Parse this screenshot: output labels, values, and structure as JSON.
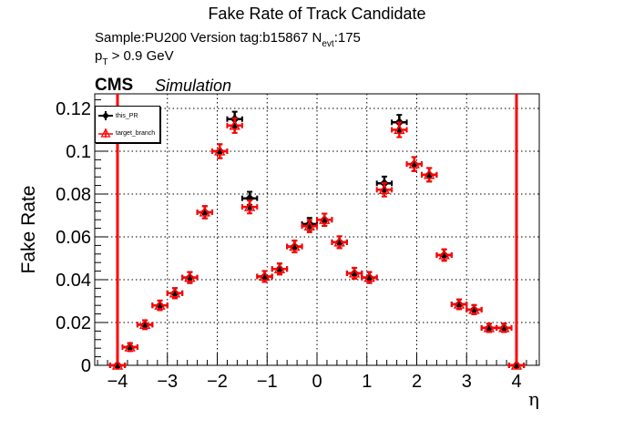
{
  "header": {
    "title": "Fake Rate of Track Candidate",
    "sample_prefix": "Sample:PU200   Version tag:b15867  N",
    "sample_sub": "evt",
    "sample_suffix": ":175",
    "pt_prefix": "p",
    "pt_sub": "T",
    "pt_suffix": " > 0.9 GeV",
    "cms": "CMS",
    "simulation": "Simulation"
  },
  "colors": {
    "this_pr": "#000000",
    "target_branch": "#ff0000",
    "cut_lines": "#ff0000"
  },
  "chart_data": {
    "type": "scatter",
    "title": "Fake Rate of Track Candidate",
    "xlabel": "η",
    "ylabel": "Fake Rate",
    "xlim": [
      -4.5,
      4.5
    ],
    "ylim": [
      0,
      0.1268
    ],
    "xticks": [
      "−4",
      "−3",
      "−2",
      "−1",
      "0",
      "1",
      "2",
      "3",
      "4"
    ],
    "yticks": [
      "0",
      "0.02",
      "0.04",
      "0.06",
      "0.08",
      "0.1",
      "0.12"
    ],
    "grid": true,
    "legend_position": "top-left",
    "vertical_lines": [
      -4.0,
      4.0
    ],
    "bin_half_width": 0.15,
    "x": [
      -4.0,
      -3.75,
      -3.45,
      -3.15,
      -2.85,
      -2.55,
      -2.25,
      -1.95,
      -1.65,
      -1.35,
      -1.05,
      -0.75,
      -0.45,
      -0.15,
      0.15,
      0.45,
      0.75,
      1.05,
      1.35,
      1.65,
      1.95,
      2.25,
      2.55,
      2.85,
      3.15,
      3.45,
      3.75,
      4.0
    ],
    "series": [
      {
        "name": "this_PR",
        "marker": "filled-diamond",
        "color": "#000000",
        "values": [
          0.0,
          0.0085,
          0.019,
          0.028,
          0.0337,
          0.041,
          0.0715,
          0.1,
          0.115,
          0.078,
          0.0415,
          0.045,
          0.0555,
          0.066,
          0.068,
          0.0575,
          0.043,
          0.041,
          0.085,
          0.1135,
          0.094,
          0.089,
          0.0515,
          0.0285,
          0.026,
          0.0175,
          0.0175,
          0.0
        ],
        "errors": [
          0.0,
          0.001,
          0.0012,
          0.0014,
          0.0015,
          0.0017,
          0.002,
          0.0024,
          0.0026,
          0.0022,
          0.0017,
          0.0017,
          0.0019,
          0.002,
          0.002,
          0.0019,
          0.0017,
          0.0017,
          0.0023,
          0.0026,
          0.0024,
          0.0023,
          0.0018,
          0.0014,
          0.0013,
          0.0011,
          0.0011,
          0.0
        ]
      },
      {
        "name": "target_branch",
        "marker": "open-triangle",
        "color": "#ff0000",
        "values": [
          0.0,
          0.0085,
          0.019,
          0.028,
          0.0337,
          0.041,
          0.0715,
          0.1,
          0.112,
          0.074,
          0.0415,
          0.045,
          0.0555,
          0.065,
          0.068,
          0.0575,
          0.043,
          0.041,
          0.082,
          0.11,
          0.094,
          0.089,
          0.0515,
          0.0285,
          0.026,
          0.0175,
          0.0175,
          0.0
        ],
        "errors": [
          0.0,
          0.001,
          0.0012,
          0.0014,
          0.0015,
          0.0017,
          0.002,
          0.0024,
          0.0026,
          0.0022,
          0.0017,
          0.0017,
          0.0019,
          0.002,
          0.002,
          0.0019,
          0.0017,
          0.0017,
          0.0023,
          0.0026,
          0.0024,
          0.0023,
          0.0018,
          0.0014,
          0.0013,
          0.0011,
          0.0011,
          0.0
        ]
      }
    ]
  },
  "legend": {
    "items": [
      {
        "label": "this_PR"
      },
      {
        "label": "target_branch"
      }
    ]
  }
}
